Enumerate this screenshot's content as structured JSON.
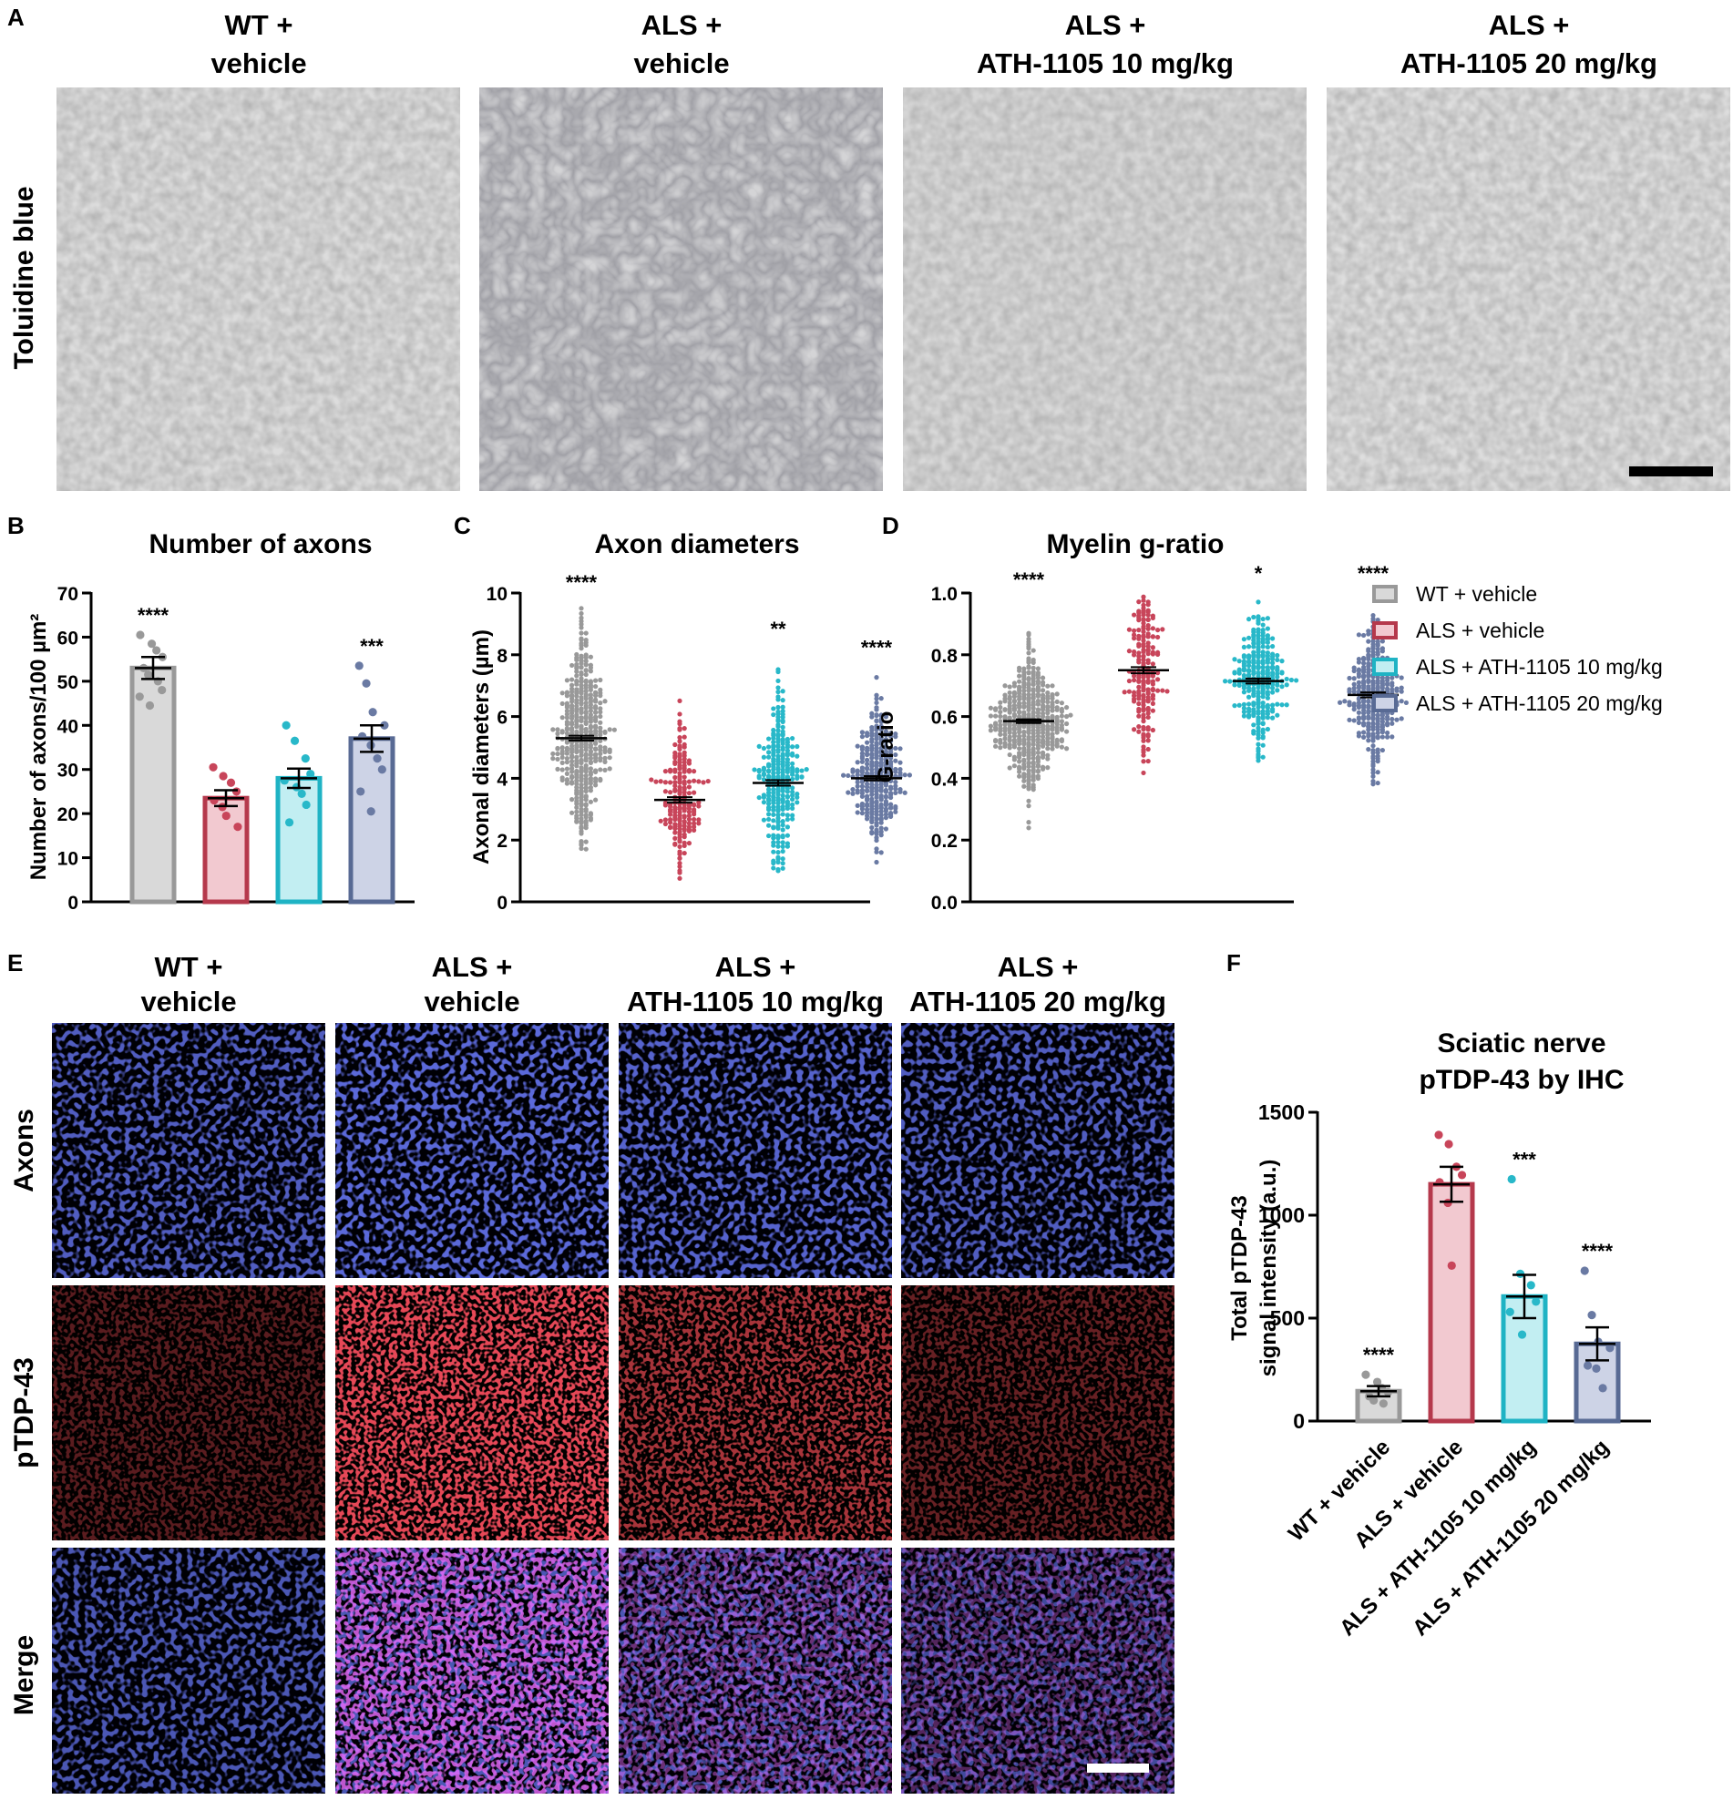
{
  "panel_labels": {
    "A": "A",
    "B": "B",
    "C": "C",
    "D": "D",
    "E": "E",
    "F": "F"
  },
  "colors": {
    "wt": {
      "fill": "#d9d9d9",
      "stroke": "#999999",
      "dot": "#999999"
    },
    "als": {
      "fill": "#f2c9d0",
      "stroke": "#b5394c",
      "dot": "#c8455a"
    },
    "d10": {
      "fill": "#c2eef2",
      "stroke": "#1fb3c4",
      "dot": "#28b8c9"
    },
    "d20": {
      "fill": "#cdd3e6",
      "stroke": "#586a94",
      "dot": "#6a7aa3"
    }
  },
  "panel_a": {
    "group_titles": [
      {
        "line1": "WT +",
        "line2": "vehicle"
      },
      {
        "line1": "ALS +",
        "line2": "vehicle"
      },
      {
        "line1": "ALS +",
        "line2": "ATH-1105 10 mg/kg"
      },
      {
        "line1": "ALS +",
        "line2": "ATH-1105 20 mg/kg"
      }
    ],
    "row_label": "Toluidine blue"
  },
  "panel_e": {
    "group_titles": [
      {
        "line1": "WT +",
        "line2": "vehicle"
      },
      {
        "line1": "ALS +",
        "line2": "vehicle"
      },
      {
        "line1": "ALS +",
        "line2": "ATH-1105 10 mg/kg"
      },
      {
        "line1": "ALS +",
        "line2": "ATH-1105 20 mg/kg"
      }
    ],
    "row_labels": [
      "Axons",
      "pTDP-43",
      "Merge"
    ]
  },
  "legend": {
    "entries": [
      "WT + vehicle",
      "ALS + vehicle",
      "ALS + ATH-1105 10 mg/kg",
      "ALS + ATH-1105 20 mg/kg"
    ]
  },
  "chart_data": [
    {
      "id": "B",
      "type": "bar",
      "title": "Number of axons",
      "ylabel": "Number of axons/100 µm²",
      "ylim": [
        0,
        70
      ],
      "yticks": [
        0,
        10,
        20,
        30,
        40,
        50,
        60,
        70
      ],
      "categories": [
        "WT + vehicle",
        "ALS + vehicle",
        "ALS + ATH-1105 10 mg/kg",
        "ALS + ATH-1105 20 mg/kg"
      ],
      "values": [
        53,
        23.5,
        28,
        37
      ],
      "sem": [
        2.5,
        1.8,
        2.2,
        3
      ],
      "significance": [
        "****",
        "",
        "",
        "***"
      ],
      "points": [
        [
          60.5,
          58.5,
          57,
          55.5,
          53,
          51.5,
          50,
          48,
          46.5,
          44.5
        ],
        [
          30.5,
          28.5,
          27,
          25,
          23,
          21.5,
          19.5,
          17
        ],
        [
          40,
          36.5,
          32.5,
          29,
          27.5,
          26,
          24.5,
          22,
          18
        ],
        [
          53.5,
          49.5,
          43,
          40,
          37.5,
          35.5,
          32.5,
          30,
          25,
          20.5
        ]
      ]
    },
    {
      "id": "C",
      "type": "scatter",
      "title": "Axon diameters",
      "ylabel": "Axonal diameters (µm)",
      "ylim": [
        0,
        10
      ],
      "yticks": [
        0,
        2,
        4,
        6,
        8,
        10
      ],
      "categories": [
        "WT + vehicle",
        "ALS + vehicle",
        "ALS + ATH-1105 10 mg/kg",
        "ALS + ATH-1105 20 mg/kg"
      ],
      "means": [
        5.3,
        3.3,
        3.85,
        4.0
      ],
      "sem": [
        0.08,
        0.09,
        0.09,
        0.07
      ],
      "ranges": [
        [
          1.6,
          9.7
        ],
        [
          0.7,
          7.6
        ],
        [
          1.0,
          8.2
        ],
        [
          1.2,
          7.6
        ]
      ],
      "spread_sd": [
        1.55,
        1.15,
        1.3,
        1.15
      ],
      "n": [
        420,
        180,
        260,
        300
      ],
      "significance": [
        "****",
        "",
        "**",
        "****"
      ]
    },
    {
      "id": "D",
      "type": "scatter",
      "title": "Myelin g-ratio",
      "ylabel": "G-ratio",
      "ylim": [
        0,
        1
      ],
      "yticks": [
        0.0,
        0.2,
        0.4,
        0.6,
        0.8,
        1.0
      ],
      "categories": [
        "WT + vehicle",
        "ALS + vehicle",
        "ALS + ATH-1105 10 mg/kg",
        "ALS + ATH-1105 20 mg/kg"
      ],
      "means": [
        0.585,
        0.75,
        0.715,
        0.67
      ],
      "sem": [
        0.006,
        0.01,
        0.008,
        0.008
      ],
      "ranges": [
        [
          0.17,
          0.98
        ],
        [
          0.23,
          1.0
        ],
        [
          0.4,
          1.0
        ],
        [
          0.23,
          1.0
        ]
      ],
      "spread_sd": [
        0.1,
        0.13,
        0.1,
        0.12
      ],
      "n": [
        420,
        180,
        260,
        300
      ],
      "significance": [
        "****",
        "",
        "*",
        "****"
      ]
    },
    {
      "id": "F",
      "type": "bar",
      "title_lines": [
        "Sciatic nerve",
        "pTDP-43 by IHC"
      ],
      "ylabel_lines": [
        "Total pTDP-43",
        "signal intensity (a.u.)"
      ],
      "ylim": [
        0,
        1500
      ],
      "yticks": [
        0,
        500,
        1000,
        1500
      ],
      "categories": [
        "WT + vehicle",
        "ALS + vehicle",
        "ALS + ATH-1105 10 mg/kg",
        "ALS + ATH-1105 20 mg/kg"
      ],
      "values": [
        145,
        1150,
        605,
        375
      ],
      "sem": [
        25,
        85,
        105,
        80
      ],
      "significance": [
        "****",
        "",
        "***",
        "****"
      ],
      "points": [
        [
          225,
          190,
          160,
          140,
          120,
          100,
          85
        ],
        [
          1390,
          1345,
          1235,
          1195,
          1160,
          1060,
          755
        ],
        [
          1175,
          715,
          660,
          580,
          530,
          420
        ],
        [
          730,
          515,
          385,
          355,
          270,
          255,
          160
        ]
      ]
    }
  ]
}
